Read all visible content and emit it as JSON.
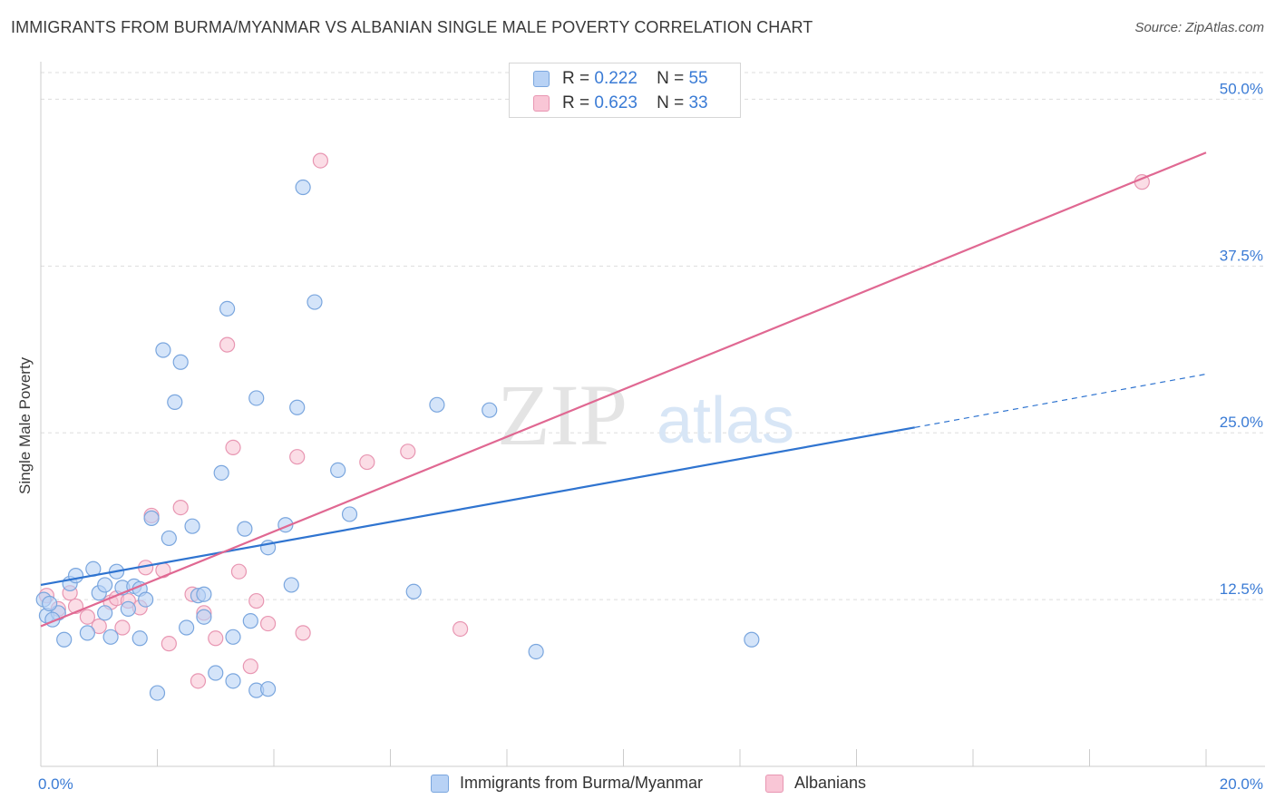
{
  "header": {
    "title": "IMMIGRANTS FROM BURMA/MYANMAR VS ALBANIAN SINGLE MALE POVERTY CORRELATION CHART",
    "source": "Source: ZipAtlas.com"
  },
  "watermark": {
    "zip": "ZIP",
    "atlas": "atlas"
  },
  "legend_top": [
    {
      "r_label": "R =",
      "r_value": "0.222",
      "n_label": "N =",
      "n_value": "55"
    },
    {
      "r_label": "R =",
      "r_value": "0.623",
      "n_label": "N =",
      "n_value": "33"
    }
  ],
  "colors": {
    "blue_fill": "#b8d2f5",
    "blue_stroke": "#7aa6de",
    "blue_line": "#2f74d0",
    "pink_fill": "#f9c6d6",
    "pink_stroke": "#e896b2",
    "pink_line": "#e06892",
    "accent_text": "#3a7bd5",
    "grid": "#dddddd"
  },
  "chart_data": {
    "type": "scatter",
    "ylabel": "Single Male Poverty",
    "xlabel": "",
    "xlim": [
      0,
      20
    ],
    "ylim": [
      0,
      52
    ],
    "x_tick_labels": [
      "0.0%",
      "20.0%"
    ],
    "y_ticks": [
      12.5,
      25.0,
      37.5,
      50.0
    ],
    "y_tick_labels": [
      "12.5%",
      "25.0%",
      "37.5%",
      "50.0%"
    ],
    "grid": true,
    "legend_position": "bottom",
    "series": [
      {
        "name": "Immigrants from Burma/Myanmar",
        "color_key": "blue",
        "regression": {
          "x0": 0,
          "y0": 13.6,
          "x1": 15.0,
          "y1": 25.4,
          "dash_to_x": 20.0,
          "dash_to_y": 29.4
        },
        "points": [
          [
            0.1,
            11.3
          ],
          [
            0.3,
            11.5
          ],
          [
            0.4,
            9.5
          ],
          [
            0.5,
            13.7
          ],
          [
            0.6,
            14.3
          ],
          [
            0.8,
            10.0
          ],
          [
            0.9,
            14.8
          ],
          [
            1.0,
            13.0
          ],
          [
            1.1,
            11.5
          ],
          [
            1.1,
            13.6
          ],
          [
            1.2,
            9.7
          ],
          [
            1.3,
            14.6
          ],
          [
            1.4,
            13.4
          ],
          [
            1.5,
            11.8
          ],
          [
            1.6,
            13.5
          ],
          [
            1.7,
            13.3
          ],
          [
            1.7,
            9.6
          ],
          [
            1.8,
            12.5
          ],
          [
            1.9,
            18.6
          ],
          [
            2.0,
            5.5
          ],
          [
            2.1,
            31.2
          ],
          [
            2.2,
            17.1
          ],
          [
            2.3,
            27.3
          ],
          [
            2.4,
            30.3
          ],
          [
            2.5,
            10.4
          ],
          [
            2.6,
            18.0
          ],
          [
            2.7,
            12.8
          ],
          [
            2.8,
            12.9
          ],
          [
            2.8,
            11.2
          ],
          [
            3.0,
            7.0
          ],
          [
            3.1,
            22.0
          ],
          [
            3.2,
            34.3
          ],
          [
            3.3,
            9.7
          ],
          [
            3.3,
            6.4
          ],
          [
            3.5,
            17.8
          ],
          [
            3.6,
            10.9
          ],
          [
            3.7,
            5.7
          ],
          [
            3.7,
            27.6
          ],
          [
            3.9,
            16.4
          ],
          [
            3.9,
            5.8
          ],
          [
            4.2,
            18.1
          ],
          [
            4.3,
            13.6
          ],
          [
            4.4,
            26.9
          ],
          [
            4.5,
            43.4
          ],
          [
            4.7,
            34.8
          ],
          [
            5.1,
            22.2
          ],
          [
            5.3,
            18.9
          ],
          [
            6.4,
            13.1
          ],
          [
            6.8,
            27.1
          ],
          [
            7.7,
            26.7
          ],
          [
            8.5,
            8.6
          ],
          [
            12.2,
            9.5
          ],
          [
            0.05,
            12.5
          ],
          [
            0.2,
            11.0
          ],
          [
            0.15,
            12.2
          ]
        ]
      },
      {
        "name": "Albanians",
        "color_key": "pink",
        "regression": {
          "x0": 0,
          "y0": 10.5,
          "x1": 20.0,
          "y1": 46.0
        },
        "points": [
          [
            0.1,
            12.8
          ],
          [
            0.3,
            11.8
          ],
          [
            0.5,
            13.0
          ],
          [
            0.6,
            12.0
          ],
          [
            0.8,
            11.2
          ],
          [
            1.0,
            10.5
          ],
          [
            1.2,
            12.3
          ],
          [
            1.3,
            12.6
          ],
          [
            1.4,
            10.4
          ],
          [
            1.5,
            12.4
          ],
          [
            1.7,
            11.9
          ],
          [
            1.8,
            14.9
          ],
          [
            1.9,
            18.8
          ],
          [
            2.1,
            14.7
          ],
          [
            2.2,
            9.2
          ],
          [
            2.4,
            19.4
          ],
          [
            2.6,
            12.9
          ],
          [
            2.7,
            6.4
          ],
          [
            2.8,
            11.5
          ],
          [
            3.0,
            9.6
          ],
          [
            3.2,
            31.6
          ],
          [
            3.3,
            23.9
          ],
          [
            3.4,
            14.6
          ],
          [
            3.6,
            7.5
          ],
          [
            3.7,
            12.4
          ],
          [
            3.9,
            10.7
          ],
          [
            4.4,
            23.2
          ],
          [
            4.5,
            10.0
          ],
          [
            4.8,
            45.4
          ],
          [
            5.6,
            22.8
          ],
          [
            6.3,
            23.6
          ],
          [
            7.2,
            10.3
          ],
          [
            18.9,
            43.8
          ]
        ]
      }
    ]
  },
  "legend_bottom": [
    {
      "label": "Immigrants from Burma/Myanmar"
    },
    {
      "label": "Albanians"
    }
  ]
}
